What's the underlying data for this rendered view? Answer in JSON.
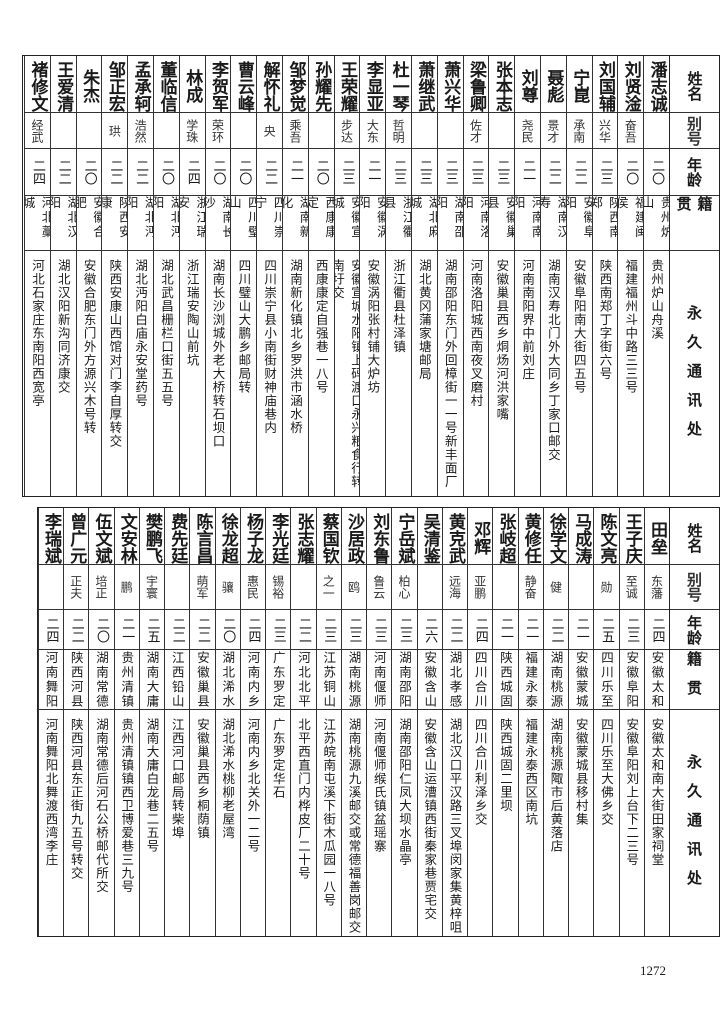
{
  "headers": {
    "name": "姓名",
    "alias": "别号",
    "age": "年龄",
    "origin": "籍贯",
    "address": "永久通讯处"
  },
  "top_rows": [
    {
      "name": "潘志诚",
      "alias": "",
      "age": "二〇",
      "origin": "贵州炉山",
      "address": "贵州炉山舟溪"
    },
    {
      "name": "刘贤淦",
      "alias": "奋吾",
      "age": "二〇",
      "origin": "福建闽侯",
      "address": "福建福州斗中路三三号"
    },
    {
      "name": "刘国辅",
      "alias": "兴华",
      "age": "二三",
      "origin": "陕西南郑",
      "address": "陕西南郑丁字街六号"
    },
    {
      "name": "宁崑",
      "alias": "承南",
      "age": "二二",
      "origin": "安徽阜阳",
      "address": "安徽阜阳南大街四五号"
    },
    {
      "name": "聂彪",
      "alias": "景才",
      "age": "二二",
      "origin": "湖南汉寿",
      "address": "湖南汉寿北门外大同乡丁家口邮交"
    },
    {
      "name": "刘尊",
      "alias": "尧民",
      "age": "二一",
      "origin": "河南南阳",
      "address": "河南南阳界中前刘庄"
    },
    {
      "name": "张本志",
      "alias": "",
      "age": "二三",
      "origin": "安徽巢县",
      "address": "安徽巢县西乡烔炀河洪家嘴"
    },
    {
      "name": "梁鲁卿",
      "alias": "佐才",
      "age": "二三",
      "origin": "河南洛阳",
      "address": "河南洛阳城西南夜叉磨村"
    },
    {
      "name": "萧兴华",
      "alias": "",
      "age": "二三",
      "origin": "湖南邵阳",
      "address": "湖南邵阳东门外回樟街一一号新丰面厂"
    },
    {
      "name": "萧继武",
      "alias": "",
      "age": "二三",
      "origin": "湖北麻城",
      "address": "湖北黄冈蒲家塘邮局"
    },
    {
      "name": "杜一琴",
      "alias": "哲明",
      "age": "二三",
      "origin": "浙江衢县",
      "address": "浙江衢县杜泽镇"
    },
    {
      "name": "李显亚",
      "alias": "大东",
      "age": "二一",
      "origin": "安徽涡阳",
      "address": "安徽涡阳张村铺大炉坊"
    },
    {
      "name": "王荣耀",
      "alias": "步达",
      "age": "二三",
      "origin": "安徽宣城",
      "address": "安徽宣城水阳镇上码渡口永兴粮食行转南圩交"
    },
    {
      "name": "孙耀先",
      "alias": "",
      "age": "二〇",
      "origin": "西康康定",
      "address": "西康康定自强巷一八号"
    },
    {
      "name": "邹梦觉",
      "alias": "乘吾",
      "age": "二一",
      "origin": "湖南新化",
      "address": "湖南新化镇北乡罗洪市涵水桥"
    },
    {
      "name": "解怀礼",
      "alias": "央",
      "age": "二二",
      "origin": "四川崇宁",
      "address": "四川崇宁县小南街财神庙巷内"
    },
    {
      "name": "曹云峰",
      "alias": "",
      "age": "二〇",
      "origin": "四川璧山",
      "address": "四川璧山大鹏乡邮局转"
    },
    {
      "name": "李贺军",
      "alias": "荣环",
      "age": "二〇",
      "origin": "湖南长沙",
      "address": "湖南长沙浏城外老大桥转石坝口"
    },
    {
      "name": "林成",
      "alias": "学珠",
      "age": "二四",
      "origin": "浙江瑞安",
      "address": "浙江瑞安陶山前坑"
    },
    {
      "name": "董临信",
      "alias": "",
      "age": "二〇",
      "origin": "湖北沔阳",
      "address": "湖北武昌栅栏口街五五号"
    },
    {
      "name": "孟承轲",
      "alias": "浩然",
      "age": "二二",
      "origin": "湖北沔阳",
      "address": "湖北沔阳白庙永安堂药号"
    },
    {
      "name": "邹正宏",
      "alias": "珙",
      "age": "二二",
      "origin": "陕西安康",
      "address": "陕西安康山西馆对门李自厚转交"
    },
    {
      "name": "朱杰",
      "alias": "",
      "age": "二〇",
      "origin": "安徽合肥",
      "address": "安徽合肥东门外方源兴木号转"
    },
    {
      "name": "王爱清",
      "alias": "",
      "age": "二二",
      "origin": "湖北汉阳",
      "address": "湖北汉阳新沟同济康交"
    },
    {
      "name": "褚修文",
      "alias": "经武",
      "age": "二四",
      "origin": "河北藁城",
      "address": "河北石家庄东南阳西宽亭"
    }
  ],
  "bottom_rows": [
    {
      "name": "田垒",
      "alias": "东藩",
      "age": "二四",
      "origin": "安徽太和",
      "address": "安徽太和南大街田家祠堂"
    },
    {
      "name": "王子庆",
      "alias": "至诚",
      "age": "二三",
      "origin": "安徽阜阳",
      "address": "安徽阜阳刘上台下二三号"
    },
    {
      "name": "陈文亮",
      "alias": "勋",
      "age": "二五",
      "origin": "四川乐至",
      "address": "四川乐至大佛乡交"
    },
    {
      "name": "马成涛",
      "alias": "",
      "age": "二一",
      "origin": "安徽蒙城",
      "address": "安徽蒙城县移村集"
    },
    {
      "name": "徐学文",
      "alias": "健",
      "age": "二二",
      "origin": "湖南桃源",
      "address": "湖南桃源陬市后黄落店"
    },
    {
      "name": "黄修任",
      "alias": "静奋",
      "age": "二一",
      "origin": "福建永泰",
      "address": "福建永泰西区南坑"
    },
    {
      "name": "张岐超",
      "alias": "",
      "age": "二一",
      "origin": "陕西城固",
      "address": "陕西城固二里坝"
    },
    {
      "name": "邓辉",
      "alias": "亚鹏",
      "age": "二四",
      "origin": "四川合川",
      "address": "四川合川利泽乡交"
    },
    {
      "name": "黄克武",
      "alias": "远海",
      "age": "二二",
      "origin": "湖北孝感",
      "address": "湖北汉口平汉路三叉埠闵家集黄梓咀"
    },
    {
      "name": "吴清鉴",
      "alias": "",
      "age": "二六",
      "origin": "安徽含山",
      "address": "安徽含山运漕镇西街秦家巷贾宅交"
    },
    {
      "name": "宁岳斌",
      "alias": "柏心",
      "age": "二三",
      "origin": "湖南邵阳",
      "address": "湖南邵阳仁凤大坝水晶亭"
    },
    {
      "name": "刘东鲁",
      "alias": "鲁云",
      "age": "二三",
      "origin": "河南偃师",
      "address": "河南偃师缑氏镇盆瑶寨"
    },
    {
      "name": "沙居政",
      "alias": "鸥",
      "age": "二三",
      "origin": "湖南桃源",
      "address": "湖南桃源九溪邮交或常德福善岗邮交"
    },
    {
      "name": "蔡国钦",
      "alias": "之一",
      "age": "二三",
      "origin": "江苏铜山",
      "address": "江苏皖南屯溪下街木瓜园一八号"
    },
    {
      "name": "张志耀",
      "alias": "",
      "age": "二二",
      "origin": "河北北平",
      "address": "北平西直门内桦皮厂二十号"
    },
    {
      "name": "李光廷",
      "alias": "锡裕",
      "age": "二三",
      "origin": "广东罗定",
      "address": "广东罗定华石"
    },
    {
      "name": "杨子龙",
      "alias": "惠民",
      "age": "二四",
      "origin": "河南内乡",
      "address": "河南内乡北关外一二号"
    },
    {
      "name": "徐龙超",
      "alias": "骧",
      "age": "二〇",
      "origin": "湖北浠水",
      "address": "湖北浠水桃柳老屋湾"
    },
    {
      "name": "陈言昌",
      "alias": "萌军",
      "age": "二二",
      "origin": "安徽巢县",
      "address": "安徽巢县西乡桐荫镇"
    },
    {
      "name": "费先廷",
      "alias": "",
      "age": "二二",
      "origin": "江西铅山",
      "address": "江西河口邮局转柴埠"
    },
    {
      "name": "樊鹏飞",
      "alias": "宇寰",
      "age": "二五",
      "origin": "湖南大庸",
      "address": "湖南大庸白龙巷二五号"
    },
    {
      "name": "文安林",
      "alias": "鹏",
      "age": "二一",
      "origin": "贵州清镇",
      "address": "贵州清镇镇西卫博爱巷三九号"
    },
    {
      "name": "伍文斌",
      "alias": "培正",
      "age": "二〇",
      "origin": "湖南常德",
      "address": "湖南常德后河石公桥邮代所交"
    },
    {
      "name": "曾广元",
      "alias": "正夫",
      "age": "二二",
      "origin": "陕西河县",
      "address": "陕西河县东正街九五号转交"
    },
    {
      "name": "李瑞斌",
      "alias": "",
      "age": "二四",
      "origin": "河南舞阳",
      "address": "河南舞阳北舞渡西湾李庄"
    }
  ],
  "page_number": "1272"
}
